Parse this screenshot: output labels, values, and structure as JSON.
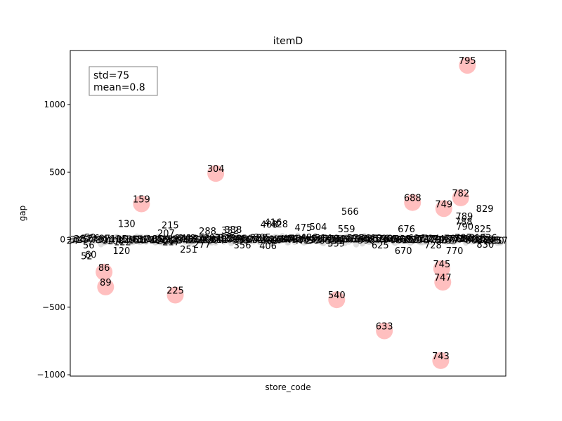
{
  "chart_data": {
    "type": "scatter",
    "title": "itemD",
    "xlabel": "store_code",
    "ylabel": "gap",
    "ylim": [
      -1010,
      1400
    ],
    "yticks": [
      -1000,
      -500,
      0,
      500,
      1000
    ],
    "ytick_labels": [
      "−1000",
      "−500",
      "0",
      "500",
      "1000"
    ],
    "stats_box": [
      "std=75",
      "mean=0.8"
    ],
    "outlier_color": "#ffaaaa",
    "background_point_color": "#cccccc",
    "outliers": [
      {
        "label": "795",
        "x": 795,
        "y": 1290
      },
      {
        "label": "304",
        "x": 304,
        "y": 490
      },
      {
        "label": "782",
        "x": 782,
        "y": 310
      },
      {
        "label": "688",
        "x": 688,
        "y": 275
      },
      {
        "label": "159",
        "x": 159,
        "y": 265
      },
      {
        "label": "749",
        "x": 749,
        "y": 230
      },
      {
        "label": "86",
        "x": 86,
        "y": -240
      },
      {
        "label": "745",
        "x": 745,
        "y": -215
      },
      {
        "label": "747",
        "x": 747,
        "y": -315
      },
      {
        "label": "89",
        "x": 89,
        "y": -350
      },
      {
        "label": "225",
        "x": 225,
        "y": -410
      },
      {
        "label": "540",
        "x": 540,
        "y": -445
      },
      {
        "label": "633",
        "x": 633,
        "y": -675
      },
      {
        "label": "743",
        "x": 743,
        "y": -895
      }
    ],
    "labeled_points": [
      {
        "label": "566",
        "x": 566,
        "y": 205
      },
      {
        "label": "829",
        "x": 829,
        "y": 225
      },
      {
        "label": "789",
        "x": 789,
        "y": 170
      },
      {
        "label": "788",
        "x": 788,
        "y": 130
      },
      {
        "label": "130",
        "x": 130,
        "y": 115
      },
      {
        "label": "215",
        "x": 215,
        "y": 105
      },
      {
        "label": "416",
        "x": 416,
        "y": 125
      },
      {
        "label": "408",
        "x": 408,
        "y": 110
      },
      {
        "label": "428",
        "x": 428,
        "y": 112
      },
      {
        "label": "504",
        "x": 504,
        "y": 90
      },
      {
        "label": "475",
        "x": 475,
        "y": 85
      },
      {
        "label": "559",
        "x": 559,
        "y": 75
      },
      {
        "label": "676",
        "x": 676,
        "y": 75
      },
      {
        "label": "825",
        "x": 825,
        "y": 75
      },
      {
        "label": "790",
        "x": 790,
        "y": 95
      },
      {
        "label": "338",
        "x": 338,
        "y": 70
      },
      {
        "label": "332",
        "x": 332,
        "y": 65
      },
      {
        "label": "288",
        "x": 288,
        "y": 60
      },
      {
        "label": "207",
        "x": 207,
        "y": 45
      },
      {
        "label": "217",
        "x": 217,
        "y": -20
      },
      {
        "label": "277",
        "x": 277,
        "y": -40
      },
      {
        "label": "251",
        "x": 251,
        "y": -75
      },
      {
        "label": "356",
        "x": 356,
        "y": -45
      },
      {
        "label": "406",
        "x": 406,
        "y": -50
      },
      {
        "label": "539",
        "x": 539,
        "y": -30
      },
      {
        "label": "625",
        "x": 625,
        "y": -45
      },
      {
        "label": "670",
        "x": 670,
        "y": -85
      },
      {
        "label": "770",
        "x": 770,
        "y": -85
      },
      {
        "label": "830",
        "x": 830,
        "y": -40
      },
      {
        "label": "120",
        "x": 120,
        "y": -85
      },
      {
        "label": "728",
        "x": 728,
        "y": -45
      },
      {
        "label": "60",
        "x": 60,
        "y": -115
      },
      {
        "label": "52",
        "x": 52,
        "y": -125
      },
      {
        "label": "56",
        "x": 56,
        "y": -45
      }
    ]
  }
}
